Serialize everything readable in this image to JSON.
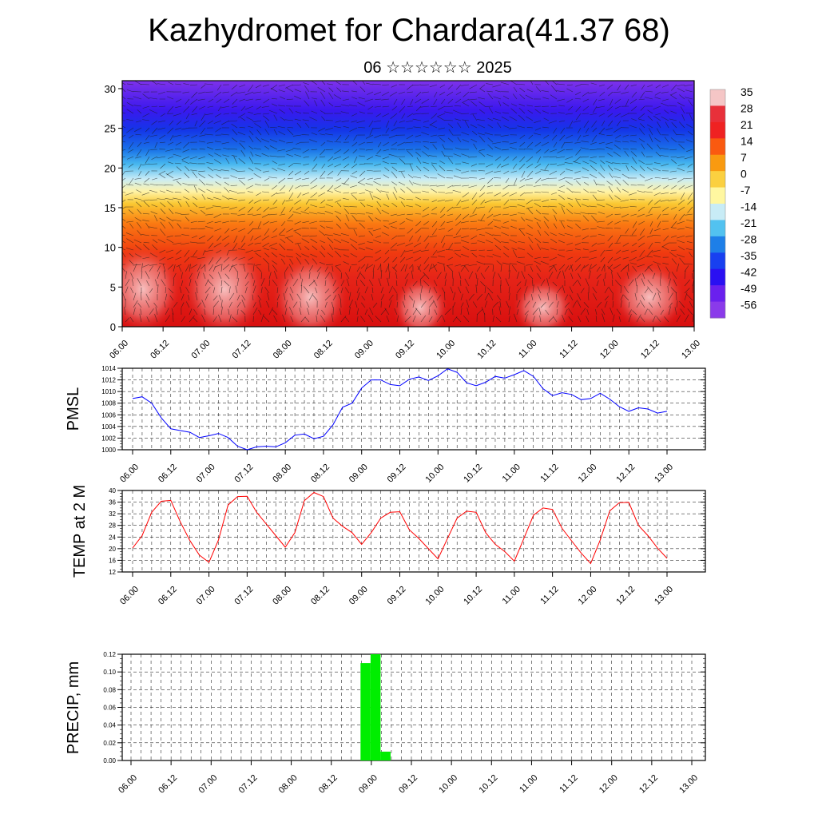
{
  "title": "Kazhydromet for Chardara(41.37 68)",
  "subtitle": "06 ☆☆☆☆☆☆ 2025",
  "time_labels": [
    "06.00",
    "06.12",
    "07.00",
    "07.12",
    "08.00",
    "08.12",
    "09.00",
    "09.12",
    "10.00",
    "10.12",
    "11.00",
    "11.12",
    "12.00",
    "12.12",
    "13.00"
  ],
  "colorbar": {
    "labels": [
      "35",
      "28",
      "21",
      "14",
      "7",
      "0",
      "-7",
      "-14",
      "-21",
      "-28",
      "-35",
      "-42",
      "-49",
      "-56"
    ],
    "colors": [
      "#f5c6c6",
      "#e8303a",
      "#ef2222",
      "#fa5a10",
      "#f99a10",
      "#fbd040",
      "#fff7a0",
      "#c8ecf6",
      "#52c2f0",
      "#1e7fe8",
      "#1840f0",
      "#2a10f2",
      "#6a20ee",
      "#8a3aea"
    ]
  },
  "chart_data": [
    {
      "type": "heatmap",
      "title": "Kazhydromet for Chardara(41.37 68)",
      "xlabel": "",
      "ylabel": "",
      "x_ticks": [
        "06.00",
        "06.12",
        "07.00",
        "07.12",
        "08.00",
        "08.12",
        "09.00",
        "09.12",
        "10.00",
        "10.12",
        "11.00",
        "11.12",
        "12.00",
        "12.12",
        "13.00"
      ],
      "y_ticks": [
        0,
        5,
        10,
        15,
        20,
        25,
        30
      ],
      "ylim": [
        0,
        31
      ],
      "colorbar_range": [
        -56,
        35
      ],
      "overlay": "wind vectors"
    },
    {
      "type": "line",
      "ylabel": "PMSL",
      "ylim": [
        1000,
        1014
      ],
      "y_ticks": [
        1000,
        1002,
        1004,
        1006,
        1008,
        1010,
        1012,
        1014
      ],
      "x_ticks": [
        "06.00",
        "06.12",
        "07.00",
        "07.12",
        "08.00",
        "08.12",
        "09.00",
        "09.12",
        "10.00",
        "10.12",
        "11.00",
        "11.12",
        "12.00",
        "12.12",
        "13.00"
      ],
      "color": "#0000ff",
      "grid": true,
      "values": [
        1008.8,
        1009.1,
        1008.0,
        1005.5,
        1003.6,
        1003.3,
        1003.0,
        1002.1,
        1002.4,
        1002.8,
        1002.1,
        1000.6,
        1000.0,
        1000.5,
        1000.6,
        1000.5,
        1001.2,
        1002.5,
        1002.7,
        1001.9,
        1002.3,
        1004.3,
        1007.3,
        1008.0,
        1010.6,
        1012.0,
        1012.0,
        1011.2,
        1011.0,
        1012.1,
        1012.5,
        1011.9,
        1012.7,
        1013.9,
        1013.3,
        1011.5,
        1011.0,
        1011.6,
        1012.6,
        1012.3,
        1012.9,
        1013.6,
        1012.6,
        1010.5,
        1009.3,
        1009.8,
        1009.5,
        1008.6,
        1008.8,
        1009.7,
        1008.7,
        1007.4,
        1006.6,
        1007.2,
        1007.0,
        1006.3,
        1006.6
      ]
    },
    {
      "type": "line",
      "ylabel": "TEMP at 2 M",
      "ylim": [
        12,
        40
      ],
      "y_ticks": [
        12,
        16,
        20,
        24,
        28,
        32,
        36,
        40
      ],
      "x_ticks": [
        "06.00",
        "06.12",
        "07.00",
        "07.12",
        "08.00",
        "08.12",
        "09.00",
        "09.12",
        "10.00",
        "10.12",
        "11.00",
        "11.12",
        "12.00",
        "12.12",
        "13.00"
      ],
      "color": "#ff0000",
      "grid": true,
      "values": [
        20.2,
        24.5,
        32.5,
        36.3,
        36.6,
        29.2,
        22.8,
        17.8,
        15.3,
        23.0,
        35.0,
        37.9,
        38.0,
        32.5,
        28.5,
        24.5,
        20.5,
        25.5,
        36.5,
        39.3,
        37.9,
        30.5,
        27.7,
        25.5,
        21.5,
        25.5,
        30.5,
        32.5,
        32.7,
        26.5,
        23.5,
        20.0,
        16.5,
        23.5,
        30.5,
        32.9,
        32.5,
        25.5,
        21.5,
        19.0,
        15.7,
        23.5,
        31.5,
        34.0,
        33.5,
        27.0,
        22.7,
        18.5,
        14.9,
        23.0,
        33.0,
        35.8,
        35.9,
        28.0,
        24.5,
        20.2,
        16.7
      ]
    },
    {
      "type": "bar",
      "ylabel": "PRECIP, mm",
      "ylim": [
        0,
        0.12
      ],
      "y_ticks": [
        "0.00",
        "0.02",
        "0.04",
        "0.06",
        "0.08",
        "0.10",
        "0.12"
      ],
      "x_ticks": [
        "06.00",
        "06.12",
        "07.00",
        "07.12",
        "08.00",
        "08.12",
        "09.00",
        "09.12",
        "10.00",
        "10.12",
        "11.00",
        "11.12",
        "12.00",
        "12.12",
        "13.00"
      ],
      "color": "#00ee00",
      "grid": true,
      "bars": [
        {
          "time_index": 5.75,
          "width": 0.25,
          "value": 0.11
        },
        {
          "time_index": 6.0,
          "width": 0.25,
          "value": 0.12
        },
        {
          "time_index": 6.25,
          "width": 0.25,
          "value": 0.01
        }
      ]
    }
  ]
}
